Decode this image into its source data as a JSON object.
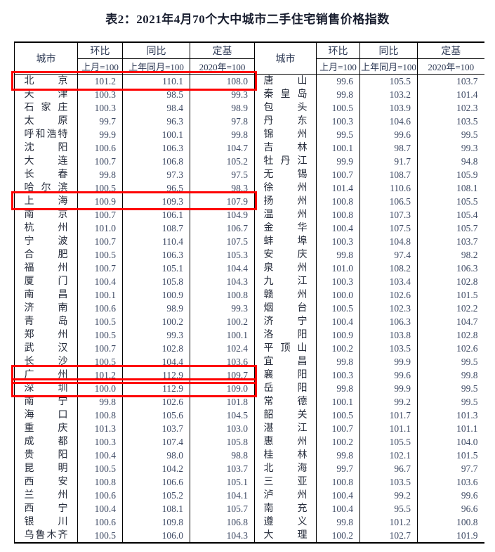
{
  "title": "表2：2021年4月70个大中城市二手住宅销售价格指数",
  "header": {
    "city": "城市",
    "cols": [
      {
        "name": "环比",
        "base": "上月=100"
      },
      {
        "name": "同比",
        "base": "上年同月=100"
      },
      {
        "name": "定基",
        "base": "2020年=100"
      }
    ]
  },
  "colors": {
    "title_text": "#181d2e",
    "header_text": "#2e3a55",
    "city_text": "#262c3b",
    "number_text": "#3d4963",
    "table_border": "#000000",
    "highlight_border": "#fe0000"
  },
  "left_rows": [
    {
      "city": "北京",
      "mom": "101.2",
      "yoy": "110.1",
      "fb": "108.0",
      "highlight": true
    },
    {
      "city": "天津",
      "mom": "100.3",
      "yoy": "98.5",
      "fb": "99.3"
    },
    {
      "city": "石家庄",
      "mom": "100.3",
      "yoy": "98.4",
      "fb": "98.9"
    },
    {
      "city": "太原",
      "mom": "99.7",
      "yoy": "96.3",
      "fb": "97.8"
    },
    {
      "city": "呼和浩特",
      "mom": "99.9",
      "yoy": "100.1",
      "fb": "99.8"
    },
    {
      "city": "沈阳",
      "mom": "100.6",
      "yoy": "106.3",
      "fb": "104.7"
    },
    {
      "city": "大连",
      "mom": "100.7",
      "yoy": "106.8",
      "fb": "105.2"
    },
    {
      "city": "长春",
      "mom": "99.8",
      "yoy": "97.3",
      "fb": "97.5"
    },
    {
      "city": "哈尔滨",
      "mom": "100.5",
      "yoy": "96.5",
      "fb": "98.3"
    },
    {
      "city": "上海",
      "mom": "100.9",
      "yoy": "109.3",
      "fb": "107.9",
      "highlight": true
    },
    {
      "city": "南京",
      "mom": "100.7",
      "yoy": "106.1",
      "fb": "104.9"
    },
    {
      "city": "杭州",
      "mom": "101.0",
      "yoy": "108.7",
      "fb": "106.7"
    },
    {
      "city": "宁波",
      "mom": "100.7",
      "yoy": "110.4",
      "fb": "107.5"
    },
    {
      "city": "合肥",
      "mom": "100.5",
      "yoy": "106.3",
      "fb": "105.3"
    },
    {
      "city": "福州",
      "mom": "100.7",
      "yoy": "105.1",
      "fb": "104.4"
    },
    {
      "city": "厦门",
      "mom": "100.4",
      "yoy": "105.8",
      "fb": "104.3"
    },
    {
      "city": "南昌",
      "mom": "100.1",
      "yoy": "100.9",
      "fb": "100.8"
    },
    {
      "city": "济南",
      "mom": "100.6",
      "yoy": "98.9",
      "fb": "99.3"
    },
    {
      "city": "青岛",
      "mom": "100.5",
      "yoy": "100.2",
      "fb": "100.2"
    },
    {
      "city": "郑州",
      "mom": "100.5",
      "yoy": "99.3",
      "fb": "100.1"
    },
    {
      "city": "武汉",
      "mom": "100.7",
      "yoy": "102.8",
      "fb": "102.4"
    },
    {
      "city": "长沙",
      "mom": "100.5",
      "yoy": "104.4",
      "fb": "103.6"
    },
    {
      "city": "广州",
      "mom": "101.2",
      "yoy": "112.9",
      "fb": "109.7",
      "highlight": true
    },
    {
      "city": "深圳",
      "mom": "100.0",
      "yoy": "112.9",
      "fb": "109.0",
      "highlight": true
    },
    {
      "city": "南宁",
      "mom": "99.8",
      "yoy": "102.6",
      "fb": "101.8"
    },
    {
      "city": "海口",
      "mom": "100.8",
      "yoy": "105.6",
      "fb": "104.5"
    },
    {
      "city": "重庆",
      "mom": "101.3",
      "yoy": "103.7",
      "fb": "103.0"
    },
    {
      "city": "成都",
      "mom": "100.3",
      "yoy": "107.4",
      "fb": "105.8"
    },
    {
      "city": "贵阳",
      "mom": "100.4",
      "yoy": "98.0",
      "fb": "98.8"
    },
    {
      "city": "昆明",
      "mom": "100.5",
      "yoy": "104.2",
      "fb": "103.7"
    },
    {
      "city": "西安",
      "mom": "100.8",
      "yoy": "106.6",
      "fb": "105.1"
    },
    {
      "city": "兰州",
      "mom": "100.6",
      "yoy": "105.2",
      "fb": "104.1"
    },
    {
      "city": "西宁",
      "mom": "100.4",
      "yoy": "108.1",
      "fb": "105.7"
    },
    {
      "city": "银川",
      "mom": "100.6",
      "yoy": "109.8",
      "fb": "106.8"
    },
    {
      "city": "乌鲁木齐",
      "mom": "100.5",
      "yoy": "106.0",
      "fb": "104.3"
    }
  ],
  "right_rows": [
    {
      "city": "唐山",
      "mom": "99.6",
      "yoy": "105.5",
      "fb": "103.7"
    },
    {
      "city": "秦皇岛",
      "mom": "99.8",
      "yoy": "103.2",
      "fb": "101.4"
    },
    {
      "city": "包头",
      "mom": "100.5",
      "yoy": "103.9",
      "fb": "102.3"
    },
    {
      "city": "丹东",
      "mom": "100.3",
      "yoy": "104.6",
      "fb": "103.5"
    },
    {
      "city": "锦州",
      "mom": "99.5",
      "yoy": "99.6",
      "fb": "99.5"
    },
    {
      "city": "吉林",
      "mom": "100.1",
      "yoy": "98.7",
      "fb": "99.3"
    },
    {
      "city": "牡丹江",
      "mom": "99.9",
      "yoy": "91.7",
      "fb": "94.8"
    },
    {
      "city": "无锡",
      "mom": "100.7",
      "yoy": "108.7",
      "fb": "105.9"
    },
    {
      "city": "徐州",
      "mom": "101.4",
      "yoy": "110.6",
      "fb": "108.1"
    },
    {
      "city": "扬州",
      "mom": "100.8",
      "yoy": "106.5",
      "fb": "105.5"
    },
    {
      "city": "温州",
      "mom": "100.8",
      "yoy": "107.3",
      "fb": "105.4"
    },
    {
      "city": "金华",
      "mom": "100.4",
      "yoy": "107.5",
      "fb": "105.7"
    },
    {
      "city": "蚌埠",
      "mom": "100.3",
      "yoy": "104.8",
      "fb": "103.7"
    },
    {
      "city": "安庆",
      "mom": "99.8",
      "yoy": "97.4",
      "fb": "98.2"
    },
    {
      "city": "泉州",
      "mom": "101.0",
      "yoy": "108.2",
      "fb": "106.3"
    },
    {
      "city": "九江",
      "mom": "100.3",
      "yoy": "103.4",
      "fb": "102.8"
    },
    {
      "city": "赣州",
      "mom": "100.0",
      "yoy": "102.6",
      "fb": "101.5"
    },
    {
      "city": "烟台",
      "mom": "100.5",
      "yoy": "102.3",
      "fb": "102.2"
    },
    {
      "city": "济宁",
      "mom": "100.4",
      "yoy": "106.3",
      "fb": "104.7"
    },
    {
      "city": "洛阳",
      "mom": "100.9",
      "yoy": "103.8",
      "fb": "102.8"
    },
    {
      "city": "平顶山",
      "mom": "100.2",
      "yoy": "103.5",
      "fb": "102.6"
    },
    {
      "city": "宜昌",
      "mom": "99.8",
      "yoy": "99.9",
      "fb": "99.5"
    },
    {
      "city": "襄阳",
      "mom": "100.3",
      "yoy": "99.6",
      "fb": "99.8"
    },
    {
      "city": "岳阳",
      "mom": "99.8",
      "yoy": "99.9",
      "fb": "99.5"
    },
    {
      "city": "常德",
      "mom": "100.1",
      "yoy": "99.2",
      "fb": "99.5"
    },
    {
      "city": "韶关",
      "mom": "100.5",
      "yoy": "101.7",
      "fb": "101.3"
    },
    {
      "city": "湛江",
      "mom": "100.7",
      "yoy": "101.1",
      "fb": "101.1"
    },
    {
      "city": "惠州",
      "mom": "100.2",
      "yoy": "105.5",
      "fb": "104.0"
    },
    {
      "city": "桂林",
      "mom": "99.8",
      "yoy": "102.1",
      "fb": "101.5"
    },
    {
      "city": "北海",
      "mom": "99.7",
      "yoy": "96.7",
      "fb": "97.7"
    },
    {
      "city": "三亚",
      "mom": "100.8",
      "yoy": "103.5",
      "fb": "103.6"
    },
    {
      "city": "泸州",
      "mom": "100.4",
      "yoy": "99.2",
      "fb": "99.6"
    },
    {
      "city": "南充",
      "mom": "100.4",
      "yoy": "95.5",
      "fb": "96.6"
    },
    {
      "city": "遵义",
      "mom": "99.8",
      "yoy": "101.2",
      "fb": "100.8"
    },
    {
      "city": "大理",
      "mom": "100.2",
      "yoy": "102.7",
      "fb": "101.9"
    }
  ]
}
